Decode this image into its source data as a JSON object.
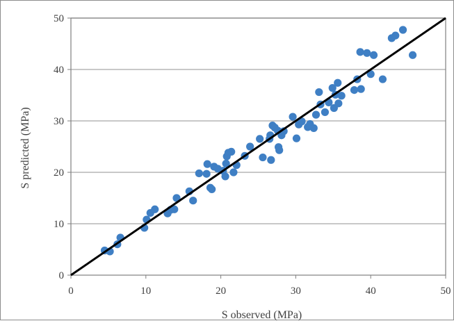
{
  "chart_data": {
    "type": "scatter",
    "title": "",
    "xlabel": "S observed (MPa)",
    "ylabel": "S predicted (MPa)",
    "xlim": [
      0,
      50
    ],
    "ylim": [
      0,
      50
    ],
    "xticks": [
      "0",
      "10",
      "20",
      "30",
      "40",
      "50"
    ],
    "yticks": [
      "0",
      "10",
      "20",
      "30",
      "40",
      "50"
    ],
    "grid": "horizontal",
    "legend": "none",
    "colors": {
      "points": "#3f7fc4",
      "reference_line": "#000000",
      "grid": "#a6a6a6",
      "plot_border": "#7f7f7f"
    },
    "reference_line": {
      "label": "",
      "x": [
        0,
        50
      ],
      "y": [
        0,
        50
      ]
    },
    "series": [
      {
        "name": "",
        "points": [
          [
            4.5,
            4.8
          ],
          [
            5.2,
            4.6
          ],
          [
            6.2,
            6.0
          ],
          [
            6.6,
            7.3
          ],
          [
            9.8,
            9.2
          ],
          [
            10.1,
            10.8
          ],
          [
            10.6,
            12.1
          ],
          [
            11.2,
            12.8
          ],
          [
            12.9,
            12.0
          ],
          [
            13.3,
            12.7
          ],
          [
            13.8,
            12.8
          ],
          [
            14.1,
            15.0
          ],
          [
            15.8,
            16.3
          ],
          [
            16.3,
            14.5
          ],
          [
            17.1,
            19.8
          ],
          [
            18.1,
            19.7
          ],
          [
            18.2,
            21.6
          ],
          [
            18.6,
            17.0
          ],
          [
            18.8,
            16.7
          ],
          [
            19.1,
            21.1
          ],
          [
            19.6,
            20.7
          ],
          [
            20.3,
            20.3
          ],
          [
            20.6,
            19.2
          ],
          [
            20.7,
            21.7
          ],
          [
            20.8,
            23.1
          ],
          [
            21.0,
            23.8
          ],
          [
            21.4,
            24.0
          ],
          [
            21.7,
            20.0
          ],
          [
            22.1,
            21.4
          ],
          [
            23.2,
            23.2
          ],
          [
            23.9,
            25.0
          ],
          [
            25.2,
            26.5
          ],
          [
            25.6,
            22.9
          ],
          [
            26.5,
            26.5
          ],
          [
            26.6,
            27.2
          ],
          [
            26.7,
            22.4
          ],
          [
            26.9,
            29.1
          ],
          [
            27.2,
            28.7
          ],
          [
            27.6,
            28.1
          ],
          [
            27.7,
            24.9
          ],
          [
            27.8,
            24.3
          ],
          [
            28.1,
            27.2
          ],
          [
            28.4,
            28.0
          ],
          [
            29.6,
            30.8
          ],
          [
            30.1,
            26.6
          ],
          [
            30.4,
            29.3
          ],
          [
            30.8,
            29.9
          ],
          [
            31.6,
            28.8
          ],
          [
            31.9,
            29.4
          ],
          [
            32.4,
            28.6
          ],
          [
            32.7,
            31.2
          ],
          [
            33.1,
            35.6
          ],
          [
            33.3,
            33.2
          ],
          [
            33.9,
            31.7
          ],
          [
            34.4,
            33.6
          ],
          [
            34.9,
            36.4
          ],
          [
            35.1,
            32.5
          ],
          [
            35.3,
            35.1
          ],
          [
            35.6,
            37.4
          ],
          [
            35.7,
            33.4
          ],
          [
            36.1,
            34.9
          ],
          [
            37.8,
            36.0
          ],
          [
            38.2,
            38.1
          ],
          [
            38.6,
            43.4
          ],
          [
            38.7,
            36.2
          ],
          [
            39.5,
            43.2
          ],
          [
            40.0,
            39.1
          ],
          [
            40.4,
            42.8
          ],
          [
            41.6,
            38.1
          ],
          [
            42.8,
            46.1
          ],
          [
            43.3,
            46.6
          ],
          [
            44.3,
            47.7
          ],
          [
            45.6,
            42.8
          ]
        ]
      }
    ]
  }
}
